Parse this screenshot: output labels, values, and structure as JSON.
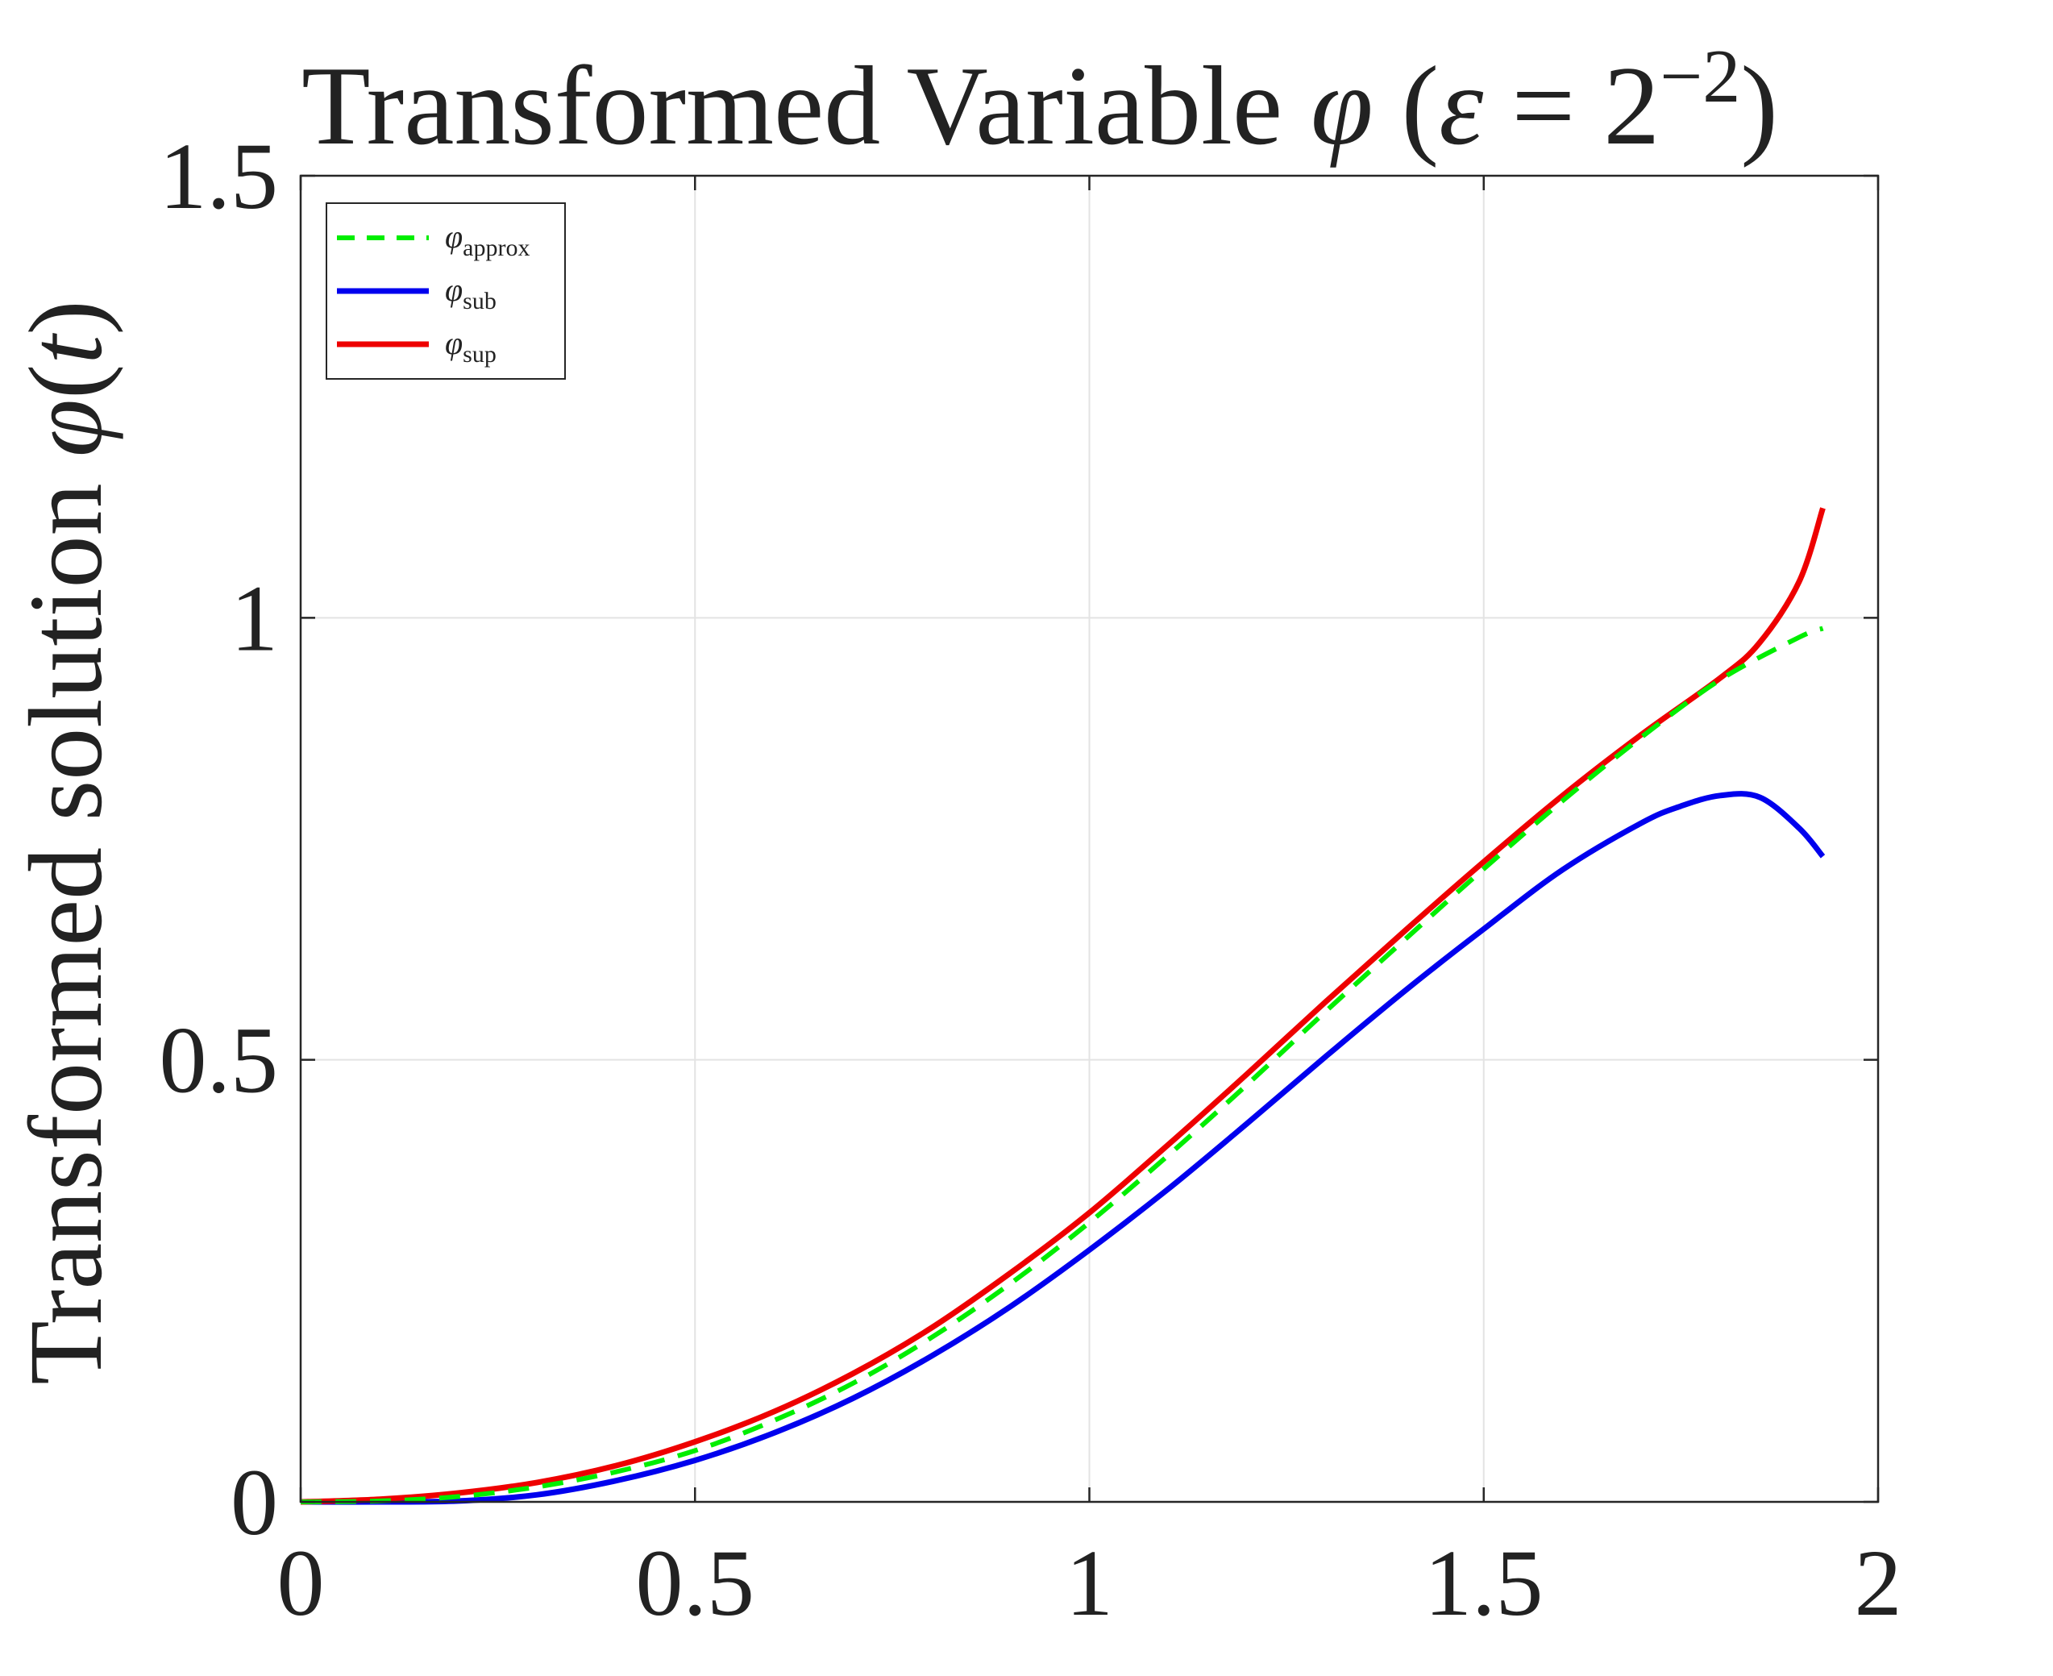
{
  "chart_data": {
    "type": "line",
    "title": {
      "main": "Transformed Variable ",
      "symbol": "φ",
      "paren_open": " (",
      "eps": "ε",
      "eq": " = 2",
      "exponent": "−2",
      "paren_close": ")"
    },
    "xlabel": "",
    "ylabel": {
      "main": "Transformed solution ",
      "symbol": "φ",
      "arg_open": "(",
      "arg": "t",
      "arg_close": ")"
    },
    "xlim": [
      0,
      2
    ],
    "ylim": [
      0,
      1.5
    ],
    "xticks": [
      0,
      0.5,
      1,
      1.5,
      2
    ],
    "yticks": [
      0,
      0.5,
      1,
      1.5
    ],
    "xtick_labels": [
      "0",
      "0.5",
      "1",
      "1.5",
      "2"
    ],
    "ytick_labels": [
      "0",
      "0.5",
      "1",
      "1.5"
    ],
    "grid": true,
    "legend_position": "top-left",
    "series": [
      {
        "name": "φapprox",
        "symbol": "φ",
        "subscript": "approx",
        "color": "#00ee00",
        "style": "dashed",
        "x": [
          0,
          0.1,
          0.2,
          0.3,
          0.4,
          0.5,
          0.6,
          0.7,
          0.8,
          0.9,
          1.0,
          1.1,
          1.2,
          1.3,
          1.4,
          1.5,
          1.6,
          1.7,
          1.8,
          1.9,
          1.93
        ],
        "y": [
          0,
          0.001,
          0.006,
          0.017,
          0.034,
          0.058,
          0.092,
          0.134,
          0.186,
          0.247,
          0.316,
          0.392,
          0.472,
          0.555,
          0.636,
          0.716,
          0.793,
          0.865,
          0.93,
          0.978,
          0.988
        ]
      },
      {
        "name": "φsub",
        "symbol": "φ",
        "subscript": "sub",
        "color": "#0000ee",
        "style": "solid",
        "x": [
          0,
          0.1,
          0.2,
          0.3,
          0.4,
          0.5,
          0.6,
          0.7,
          0.8,
          0.9,
          1.0,
          1.1,
          1.2,
          1.3,
          1.4,
          1.5,
          1.6,
          1.7,
          1.75,
          1.8,
          1.85,
          1.9,
          1.93
        ],
        "y": [
          0,
          0,
          0.001,
          0.008,
          0.024,
          0.047,
          0.078,
          0.117,
          0.165,
          0.221,
          0.285,
          0.354,
          0.428,
          0.504,
          0.578,
          0.648,
          0.715,
          0.768,
          0.787,
          0.799,
          0.797,
          0.762,
          0.73
        ]
      },
      {
        "name": "φsup",
        "symbol": "φ",
        "subscript": "sup",
        "color": "#ee0000",
        "style": "solid",
        "x": [
          0,
          0.1,
          0.2,
          0.3,
          0.4,
          0.5,
          0.6,
          0.7,
          0.8,
          0.9,
          1.0,
          1.1,
          1.2,
          1.3,
          1.4,
          1.5,
          1.6,
          1.7,
          1.8,
          1.85,
          1.9,
          1.93
        ],
        "y": [
          0,
          0.003,
          0.01,
          0.022,
          0.041,
          0.068,
          0.102,
          0.145,
          0.197,
          0.259,
          0.327,
          0.404,
          0.484,
          0.566,
          0.646,
          0.724,
          0.799,
          0.868,
          0.932,
          0.972,
          1.041,
          1.124
        ]
      }
    ]
  }
}
